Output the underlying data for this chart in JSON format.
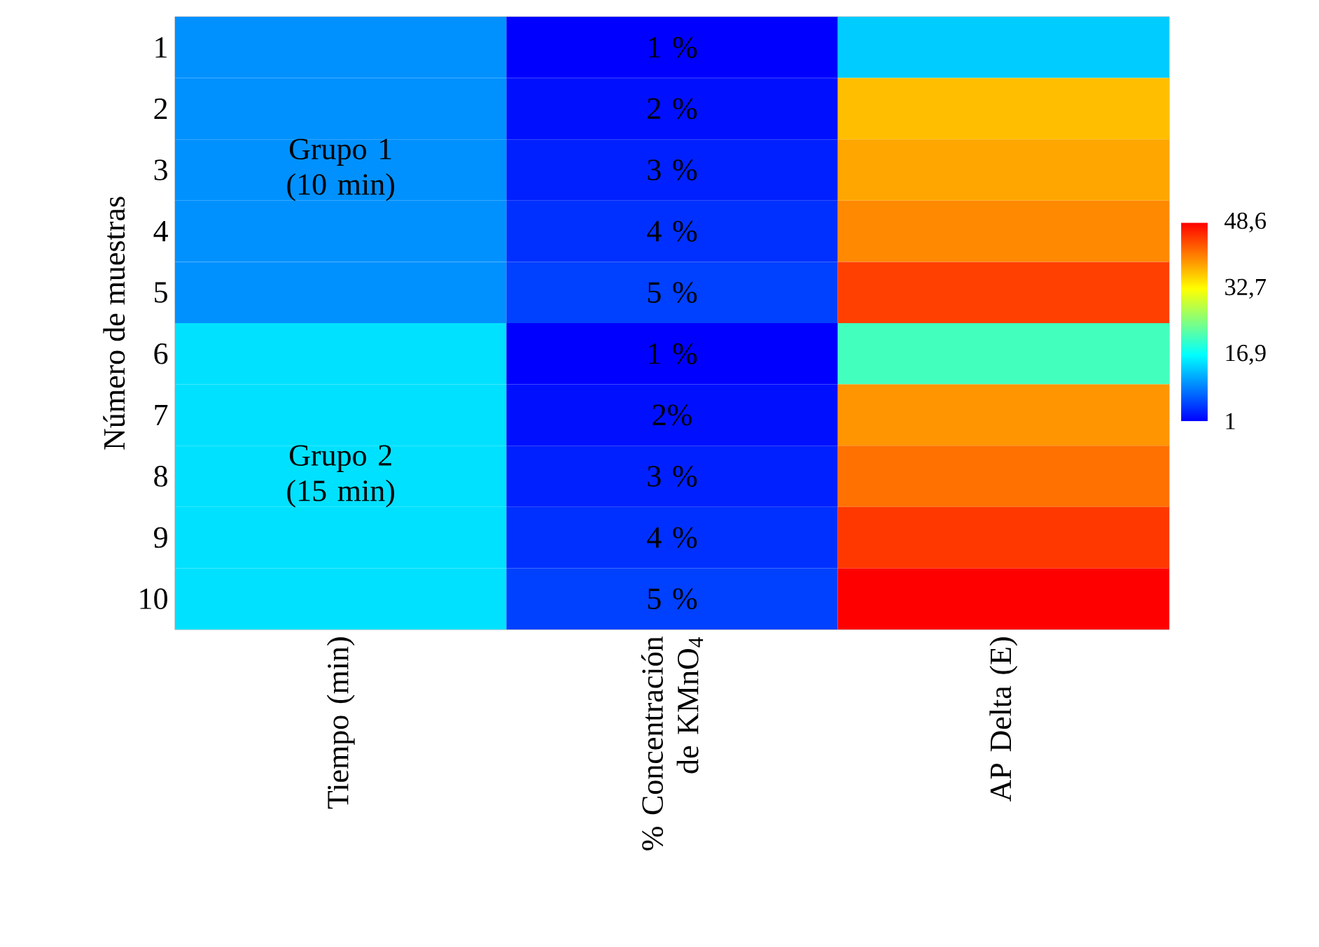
{
  "chart_data": {
    "type": "heatmap",
    "ylabel": "Número de muestras",
    "categories": [
      "Tiempo (min)",
      "% Concentración de KMnO$_{4}$",
      "AP Delta (E)"
    ],
    "y_categories": [
      "1",
      "2",
      "3",
      "4",
      "5",
      "6",
      "7",
      "8",
      "9",
      "10"
    ],
    "cells": [
      [
        10,
        1,
        13.7
      ],
      [
        10,
        2,
        36.7
      ],
      [
        10,
        3,
        38.3
      ],
      [
        10,
        4,
        40.1
      ],
      [
        10,
        5,
        44.6
      ],
      [
        15,
        1,
        21
      ],
      [
        15,
        2,
        39.3
      ],
      [
        15,
        3,
        41.6
      ],
      [
        15,
        4,
        45.1
      ],
      [
        15,
        5,
        48.6
      ]
    ],
    "cell_labels": [
      [
        null,
        "1 %",
        null
      ],
      [
        null,
        "2 %",
        null
      ],
      [
        "Grupo 1 (10 min)",
        "3 %",
        null
      ],
      [
        null,
        "4 %",
        null
      ],
      [
        null,
        "5 %",
        null
      ],
      [
        null,
        "1 %",
        null
      ],
      [
        null,
        "2%",
        null
      ],
      [
        "Grupo 2 (15 min)",
        "3 %",
        null
      ],
      [
        null,
        "4 %",
        null
      ],
      [
        null,
        "5 %",
        null
      ]
    ],
    "clim": [
      1,
      48.6
    ],
    "cticks": [
      1,
      {
        "value": 16.9,
        "label": "16,9"
      },
      {
        "value": 32.7,
        "label": "32,7"
      },
      {
        "value": 48.6,
        "label": "48,6"
      }
    ]
  }
}
